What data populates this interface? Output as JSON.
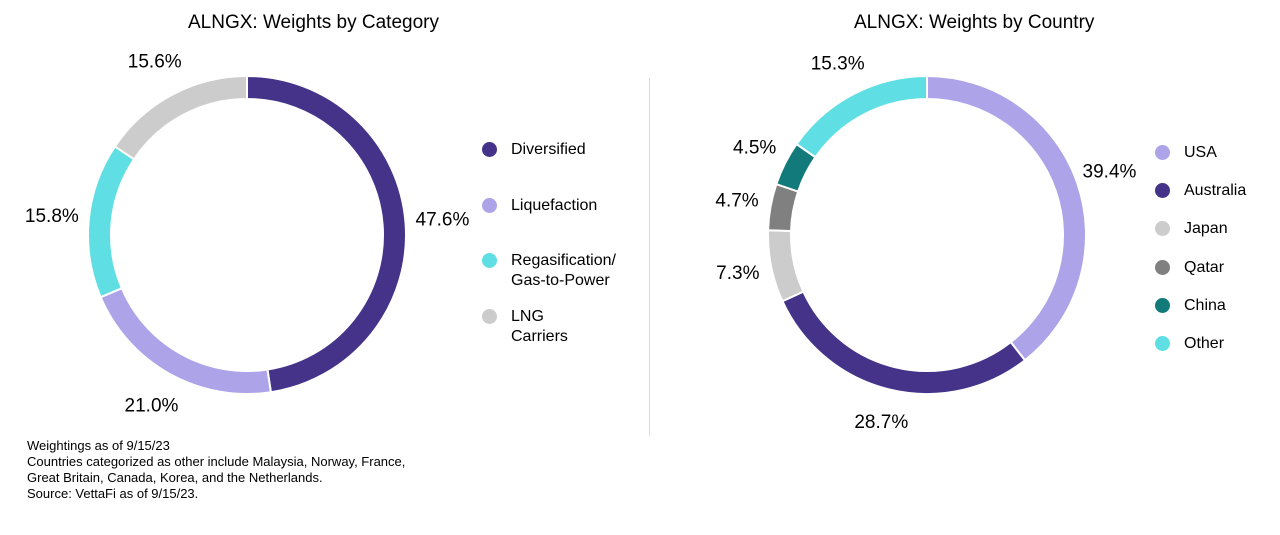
{
  "chart_data": [
    {
      "type": "pie",
      "title": "ALNGX: Weights by Category",
      "slices": [
        {
          "name": "Diversified",
          "value": 47.6,
          "label": "47.6%",
          "color": "#45338a"
        },
        {
          "name": "Liquefaction",
          "value": 21.0,
          "label": "21.0%",
          "color": "#ada3e8"
        },
        {
          "name": "Regasification/\nGas-to-Power",
          "value": 15.8,
          "label": "15.8%",
          "color": "#5fdfe3"
        },
        {
          "name": "LNG Carriers",
          "value": 15.6,
          "label": "15.6%",
          "color": "#cccccc"
        }
      ],
      "legend_position": "right"
    },
    {
      "type": "pie",
      "title": "ALNGX: Weights by Country",
      "slices": [
        {
          "name": "USA",
          "value": 39.4,
          "label": "39.4%",
          "color": "#ada3e8"
        },
        {
          "name": "Australia",
          "value": 28.7,
          "label": "28.7%",
          "color": "#45338a"
        },
        {
          "name": "Japan",
          "value": 7.3,
          "label": "7.3%",
          "color": "#cccccc"
        },
        {
          "name": "Qatar",
          "value": 4.7,
          "label": "4.7%",
          "color": "#808080"
        },
        {
          "name": "China",
          "value": 4.5,
          "label": "4.5%",
          "color": "#127a7a"
        },
        {
          "name": "Other",
          "value": 15.3,
          "label": "15.3%",
          "color": "#5fdfe3"
        }
      ],
      "legend_position": "right"
    }
  ],
  "footnotes": [
    "Weightings as of 9/15/23",
    "Countries categorized as other include Malaysia, Norway, France,",
    "Great Britain, Canada, Korea, and the Netherlands.",
    "Source: VettaFi as of 9/15/23."
  ]
}
